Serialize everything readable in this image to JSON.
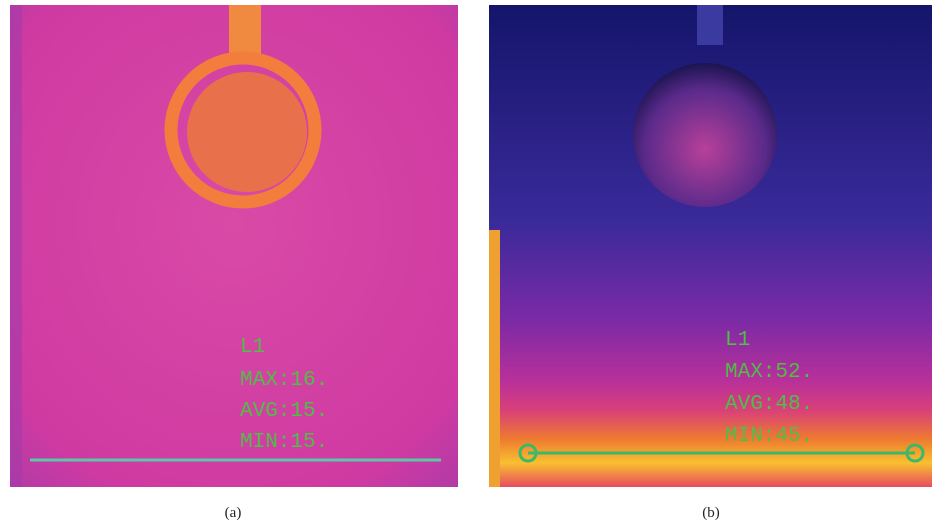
{
  "panels": [
    {
      "caption": "(a)",
      "readout": {
        "line": "L1",
        "max": "MAX:16.",
        "avg": "AVG:15.",
        "min": "MIN:15."
      }
    },
    {
      "caption": "(b)",
      "readout": {
        "line": "L1",
        "max": "MAX:52.",
        "avg": "AVG:48.",
        "min": "MIN:45."
      }
    }
  ]
}
